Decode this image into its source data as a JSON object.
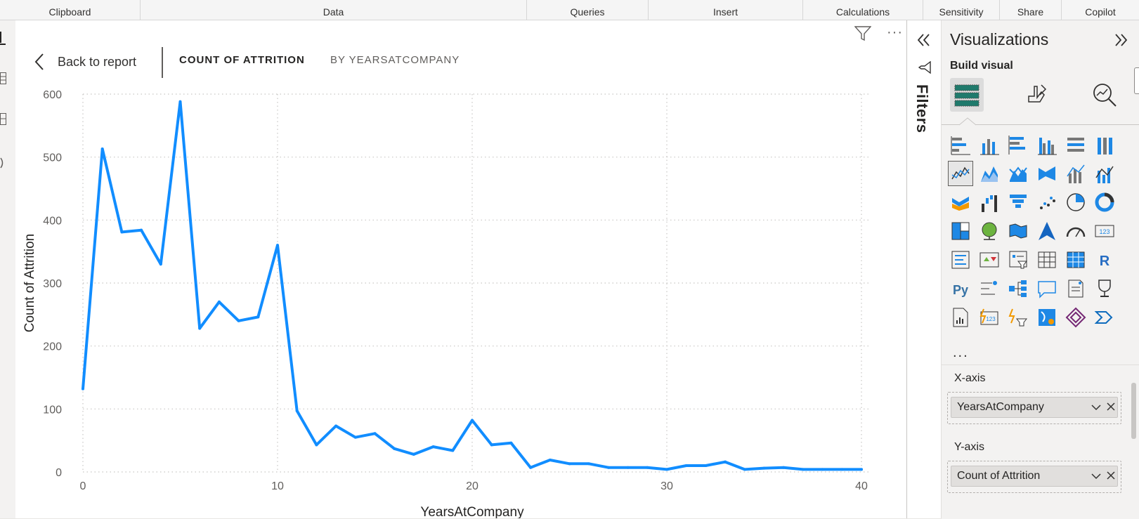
{
  "ribbon": {
    "groups": [
      "Clipboard",
      "Data",
      "Queries",
      "Insert",
      "Calculations",
      "Sensitivity",
      "Share",
      "Copilot"
    ]
  },
  "visual_header": {
    "back_label": "Back to report",
    "title": "COUNT OF ATTRITION",
    "subtitle": "BY YEARSATCOMPANY"
  },
  "filters_pane": {
    "label": "Filters"
  },
  "viz_pane": {
    "title": "Visualizations",
    "build_label": "Build visual",
    "tabs": [
      "build-visual-icon",
      "format-visual-icon",
      "analytics-icon"
    ],
    "more": "...",
    "x_axis_label": "X-axis",
    "x_axis_field": "YearsAtCompany",
    "y_axis_label": "Y-axis",
    "y_axis_field": "Count of Attrition",
    "accent": "#1e90ff"
  },
  "chart_data": {
    "type": "line",
    "title": "",
    "xlabel": "YearsAtCompany",
    "ylabel": "Count of Attrition",
    "xlim": [
      0,
      40
    ],
    "ylim": [
      0,
      600
    ],
    "xticks": [
      0,
      10,
      20,
      30,
      40
    ],
    "yticks": [
      0,
      100,
      200,
      300,
      400,
      500,
      600
    ],
    "grid": true,
    "series": [
      {
        "color": "#118dff",
        "x": [
          0,
          1,
          2,
          3,
          4,
          5,
          6,
          7,
          8,
          9,
          10,
          11,
          12,
          13,
          14,
          15,
          16,
          17,
          18,
          19,
          20,
          21,
          22,
          23,
          24,
          25,
          26,
          27,
          28,
          29,
          30,
          31,
          32,
          33,
          34,
          35,
          36,
          37,
          38,
          39,
          40
        ],
        "y": [
          132,
          513,
          381,
          384,
          330,
          588,
          228,
          270,
          240,
          246,
          360,
          97,
          43,
          73,
          55,
          61,
          37,
          28,
          40,
          34,
          82,
          43,
          46,
          7,
          19,
          13,
          13,
          7,
          7,
          7,
          4,
          10,
          10,
          16,
          4,
          6,
          7,
          4,
          4,
          4,
          4
        ]
      }
    ]
  }
}
